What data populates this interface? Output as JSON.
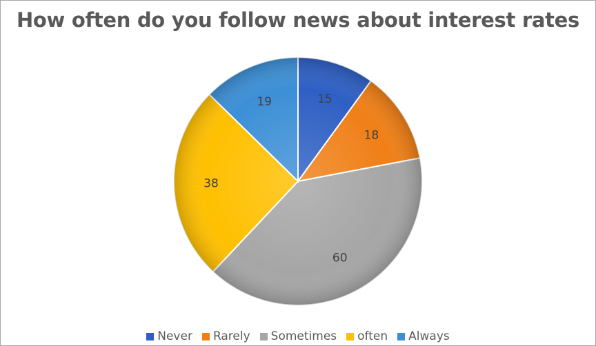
{
  "chart_data": {
    "type": "pie",
    "title": "How often do you follow news about interest rates",
    "categories": [
      "Never",
      "Rarely",
      "Sometimes",
      "often",
      "Always"
    ],
    "values": [
      15,
      18,
      60,
      38,
      19
    ],
    "colors": [
      "#2e5fc4",
      "#f07f16",
      "#a6a6a6",
      "#ffc000",
      "#3c8fd6"
    ],
    "data_labels": [
      "15",
      "18",
      "60",
      "38",
      "19"
    ],
    "legend_position": "bottom",
    "start_angle": "12 o'clock",
    "direction": "clockwise"
  }
}
